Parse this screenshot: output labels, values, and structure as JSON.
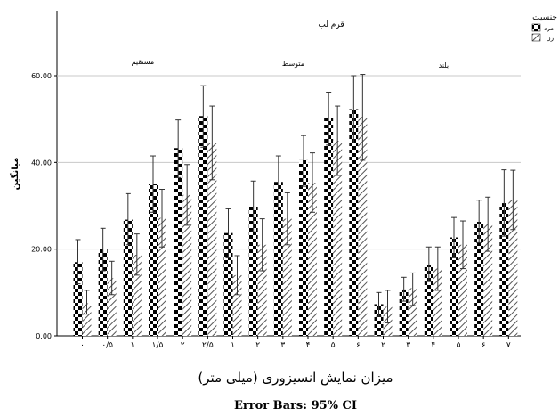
{
  "chart_data": {
    "type": "bar",
    "title": "قرم لب",
    "ylabel": "میانگین",
    "xlabel": "میزان نمایش انسیزوری (میلی متر)",
    "footnote": "Error Bars: 95% CI",
    "ylim": [
      0,
      75
    ],
    "yticks": [
      "0.00",
      "20.00",
      "40.00",
      "60.00"
    ],
    "grid": "horizontal",
    "legend_title": "جنسیت",
    "legend_position": "top-right",
    "series": [
      {
        "name": "مرد",
        "pattern": "checker",
        "color": "#000000",
        "values": [
          17.0,
          20.0,
          26.8,
          35.0,
          43.3,
          50.7,
          23.7,
          29.8,
          35.5,
          40.5,
          50.2,
          52.3,
          7.3,
          10.7,
          16.3,
          22.7,
          26.3,
          30.6
        ],
        "ci_low": [
          12.0,
          15.0,
          21.0,
          28.5,
          36.5,
          43.5,
          18.0,
          24.0,
          29.5,
          34.5,
          44.0,
          44.5,
          4.5,
          8.0,
          12.5,
          18.0,
          21.5,
          23.0
        ],
        "ci_high": [
          22.2,
          24.8,
          32.8,
          41.5,
          49.8,
          57.7,
          29.3,
          35.7,
          41.5,
          46.2,
          56.2,
          60.0,
          10.0,
          13.5,
          20.5,
          27.3,
          31.3,
          38.3
        ]
      },
      {
        "name": "زن",
        "pattern": "hatch",
        "color": "#000000",
        "values": [
          7.5,
          13.3,
          18.7,
          27.2,
          32.5,
          44.5,
          14.0,
          21.0,
          27.0,
          35.3,
          45.0,
          50.5,
          6.7,
          11.0,
          15.5,
          21.0,
          25.7,
          31.3
        ],
        "ci_low": [
          5.0,
          9.5,
          14.0,
          20.5,
          25.5,
          36.0,
          9.5,
          15.0,
          21.0,
          28.5,
          37.0,
          40.5,
          3.0,
          7.0,
          10.5,
          15.5,
          19.5,
          24.5
        ],
        "ci_high": [
          10.5,
          17.2,
          23.5,
          33.8,
          39.5,
          53.0,
          18.5,
          27.0,
          33.0,
          42.2,
          53.0,
          60.3,
          10.5,
          14.5,
          20.5,
          26.5,
          32.0,
          38.2
        ]
      }
    ],
    "panels": [
      {
        "label": "مستقیم",
        "categories": [
          "۰",
          "۰/۵",
          "۱",
          "۱/۵",
          "۲",
          "۲/۵"
        ]
      },
      {
        "label": "متوسط",
        "categories": [
          "۱",
          "۲",
          "۳",
          "۴",
          "۵",
          "۶"
        ]
      },
      {
        "label": "بلند",
        "categories": [
          "۲",
          "۳",
          "۴",
          "۵",
          "۶",
          "۷"
        ]
      }
    ]
  }
}
